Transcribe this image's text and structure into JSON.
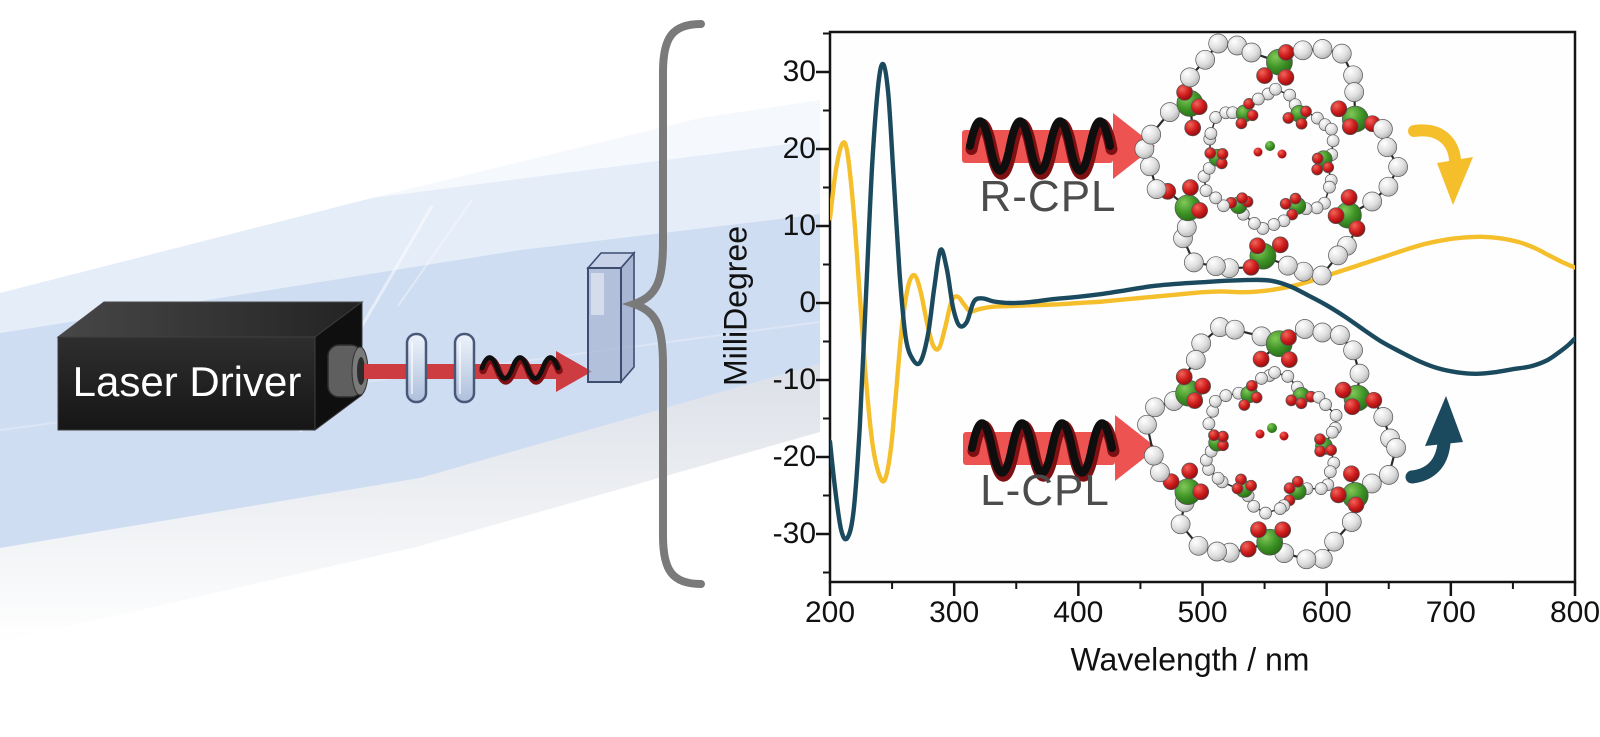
{
  "labels": {
    "laser": "Laser Driver",
    "r_cpl": "R-CPL",
    "l_cpl": "L-CPL"
  },
  "chart": {
    "y_axis_label": "MilliDegree",
    "x_axis_label": "Wavelength / nm",
    "x_tick_labels": [
      "200",
      "300",
      "400",
      "500",
      "600",
      "700",
      "800"
    ],
    "y_tick_labels": [
      "30",
      "20",
      "10",
      "0",
      "-10",
      "-20",
      "-30"
    ]
  },
  "chart_data": {
    "type": "line",
    "title": "",
    "xlabel": "Wavelength / nm",
    "ylabel": "MilliDegree",
    "xlim": [
      200,
      800
    ],
    "ylim": [
      -36,
      35
    ],
    "x_ticks": [
      200,
      300,
      400,
      500,
      600,
      700,
      800
    ],
    "x_minor_step": 50,
    "y_ticks": [
      30,
      20,
      10,
      0,
      -10,
      -20,
      -30
    ],
    "y_minor_step": 5,
    "grid": false,
    "legend_position": "none",
    "series": [
      {
        "name": "R-CPL",
        "color": "#F5BE2B",
        "points": [
          [
            200,
            11
          ],
          [
            205,
            17.5
          ],
          [
            210,
            20.7
          ],
          [
            214,
            19.5
          ],
          [
            219,
            12
          ],
          [
            224,
            1
          ],
          [
            229,
            -10
          ],
          [
            234,
            -18
          ],
          [
            239,
            -22
          ],
          [
            244,
            -23
          ],
          [
            249,
            -19
          ],
          [
            253,
            -12
          ],
          [
            258,
            -3
          ],
          [
            263,
            2.2
          ],
          [
            268,
            3.6
          ],
          [
            273,
            1.5
          ],
          [
            278,
            -2.5
          ],
          [
            283,
            -5.5
          ],
          [
            288,
            -5.8
          ],
          [
            293,
            -3
          ],
          [
            298,
            0.3
          ],
          [
            303,
            0.8
          ],
          [
            308,
            -0.2
          ],
          [
            313,
            -1.1
          ],
          [
            320,
            -0.8
          ],
          [
            330,
            -0.5
          ],
          [
            345,
            -0.4
          ],
          [
            360,
            -0.3
          ],
          [
            380,
            -0.2
          ],
          [
            400,
            0
          ],
          [
            420,
            0.2
          ],
          [
            440,
            0.5
          ],
          [
            460,
            0.8
          ],
          [
            480,
            1.1
          ],
          [
            500,
            1.4
          ],
          [
            515,
            1.5
          ],
          [
            530,
            1.4
          ],
          [
            545,
            1.5
          ],
          [
            560,
            1.8
          ],
          [
            575,
            2.3
          ],
          [
            590,
            3.0
          ],
          [
            605,
            3.8
          ],
          [
            620,
            4.6
          ],
          [
            635,
            5.4
          ],
          [
            650,
            6.2
          ],
          [
            665,
            7.0
          ],
          [
            680,
            7.7
          ],
          [
            695,
            8.2
          ],
          [
            710,
            8.5
          ],
          [
            725,
            8.6
          ],
          [
            740,
            8.4
          ],
          [
            755,
            7.9
          ],
          [
            768,
            7.1
          ],
          [
            780,
            6.1
          ],
          [
            790,
            5.3
          ],
          [
            800,
            4.6
          ]
        ]
      },
      {
        "name": "L-CPL",
        "color": "#1B4A5F",
        "points": [
          [
            200,
            -18
          ],
          [
            204,
            -24
          ],
          [
            209,
            -29.5
          ],
          [
            214,
            -30.5
          ],
          [
            219,
            -27
          ],
          [
            224,
            -16
          ],
          [
            229,
            1
          ],
          [
            234,
            18
          ],
          [
            239,
            28.5
          ],
          [
            243,
            31
          ],
          [
            247,
            27
          ],
          [
            251,
            17
          ],
          [
            256,
            4
          ],
          [
            261,
            -4.5
          ],
          [
            267,
            -7.4
          ],
          [
            273,
            -7.6
          ],
          [
            279,
            -4
          ],
          [
            284,
            2
          ],
          [
            289,
            6.9
          ],
          [
            294,
            4.5
          ],
          [
            299,
            -0.5
          ],
          [
            304,
            -2.9
          ],
          [
            310,
            -2.5
          ],
          [
            316,
            0.2
          ],
          [
            323,
            0.6
          ],
          [
            332,
            0.2
          ],
          [
            345,
            0
          ],
          [
            360,
            0.1
          ],
          [
            380,
            0.5
          ],
          [
            400,
            0.8
          ],
          [
            420,
            1.2
          ],
          [
            440,
            1.7
          ],
          [
            460,
            2.2
          ],
          [
            480,
            2.5
          ],
          [
            500,
            2.7
          ],
          [
            520,
            2.9
          ],
          [
            540,
            3.0
          ],
          [
            555,
            2.9
          ],
          [
            570,
            2.2
          ],
          [
            585,
            1.0
          ],
          [
            600,
            -0.3
          ],
          [
            615,
            -1.8
          ],
          [
            630,
            -3.5
          ],
          [
            645,
            -5.1
          ],
          [
            660,
            -6.4
          ],
          [
            675,
            -7.6
          ],
          [
            690,
            -8.5
          ],
          [
            705,
            -9.0
          ],
          [
            720,
            -9.2
          ],
          [
            735,
            -9.0
          ],
          [
            750,
            -8.6
          ],
          [
            765,
            -8.2
          ],
          [
            778,
            -7.4
          ],
          [
            788,
            -6.3
          ],
          [
            795,
            -5.4
          ],
          [
            800,
            -4.6
          ]
        ]
      }
    ]
  },
  "colors": {
    "navy": "#1B4A5F",
    "gold": "#F5BE2B",
    "beam_red": "#CD3C40",
    "arrow_red": "#ED5451",
    "coil_black": "#0E0E0E",
    "coil_red": "#7E1013",
    "brace_gray": "#7A7A7A",
    "label_gray": "#4C4C4C",
    "axis_black": "#141414",
    "prism_blue": "#CBDAF1",
    "prism_light": "#E2EBF8",
    "atom_green": "#3F9427",
    "atom_red": "#C01414",
    "atom_white": "#E9E9E9",
    "box_black": "#1E1E1E"
  }
}
